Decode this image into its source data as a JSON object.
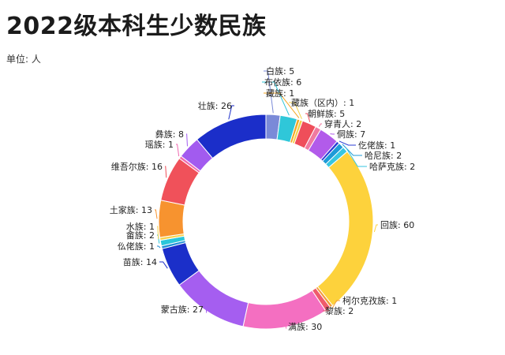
{
  "header": {
    "title": "2022级本科生少数民族",
    "unit": "单位: 人"
  },
  "chart_data": {
    "type": "pie",
    "style": "donut",
    "title": "2022级本科生少数民族",
    "unit": "单位: 人",
    "slices": [
      {
        "name": "白族",
        "value": 5,
        "color": "#7a8ad8"
      },
      {
        "name": "布依族",
        "value": 6,
        "color": "#2fc7d9"
      },
      {
        "name": "藏族",
        "value": 1,
        "color": "#f5a623"
      },
      {
        "name": "藏族（区内）",
        "value": 1,
        "color": "#f3d14a"
      },
      {
        "name": "朝鲜族",
        "value": 5,
        "color": "#ef4e5a"
      },
      {
        "name": "穿青人",
        "value": 2,
        "color": "#f07aa0"
      },
      {
        "name": "侗族",
        "value": 7,
        "color": "#b25bea"
      },
      {
        "name": "仡佬族",
        "value": 1,
        "color": "#2b3dd6"
      },
      {
        "name": "哈尼族",
        "value": 2,
        "color": "#1e9bd8"
      },
      {
        "name": "哈萨克族",
        "value": 2,
        "color": "#36c6e0"
      },
      {
        "name": "回族",
        "value": 60,
        "color": "#fdd23c"
      },
      {
        "name": "柯尔克孜族",
        "value": 1,
        "color": "#f39c3a"
      },
      {
        "name": "黎族",
        "value": 2,
        "color": "#ef5b6c"
      },
      {
        "name": "满族",
        "value": 30,
        "color": "#f46fc1"
      },
      {
        "name": "蒙古族",
        "value": 27,
        "color": "#a55ef0"
      },
      {
        "name": "苗族",
        "value": 14,
        "color": "#1b2fc9"
      },
      {
        "name": "仫佬族",
        "value": 1,
        "color": "#1d8fd6"
      },
      {
        "name": "畲族",
        "value": 2,
        "color": "#2bc6da"
      },
      {
        "name": "水族",
        "value": 1,
        "color": "#f8d24c"
      },
      {
        "name": "土家族",
        "value": 13,
        "color": "#f7932f"
      },
      {
        "name": "维吾尔族",
        "value": 16,
        "color": "#f0515a"
      },
      {
        "name": "瑶族",
        "value": 1,
        "color": "#f06ab0"
      },
      {
        "name": "彝族",
        "value": 8,
        "color": "#a25bef"
      },
      {
        "name": "壮族",
        "value": 26,
        "color": "#1b2ec9"
      }
    ]
  }
}
